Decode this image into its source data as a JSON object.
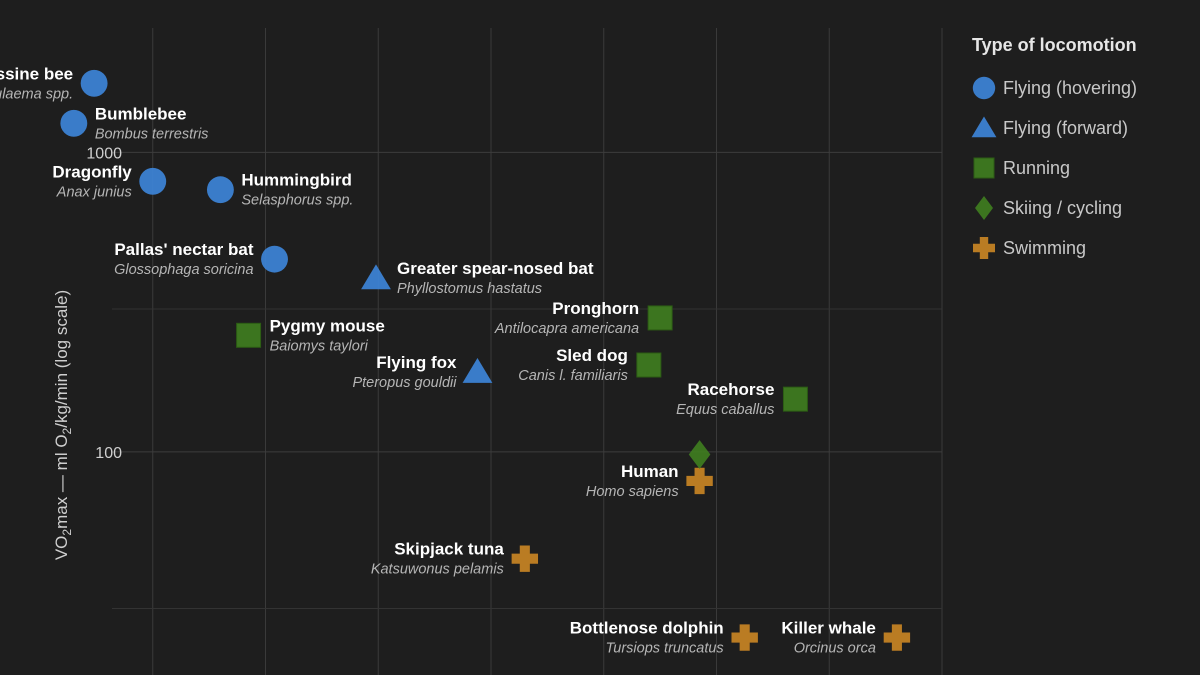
{
  "chart_data": {
    "type": "scatter",
    "ylabel_parts": {
      "pre": "VO",
      "sub": "2",
      "mid": "max — ml O",
      "sub2": "2",
      "post": "/kg/min (log scale)"
    },
    "yscale": "log",
    "ylim": [
      18,
      2600
    ],
    "xlim": [
      0,
      8
    ],
    "y_ticks": [
      {
        "value": 100,
        "label": "100"
      },
      {
        "value": 1000,
        "label": "1000"
      }
    ],
    "grid": true,
    "legend": {
      "title": "Type of locomotion",
      "position": "right",
      "items": [
        {
          "key": "hover",
          "label": "Flying (hovering)",
          "shape": "circle",
          "color": "#3d84d8"
        },
        {
          "key": "forward",
          "label": "Flying (forward)",
          "shape": "triangle",
          "color": "#3d84d8"
        },
        {
          "key": "run",
          "label": "Running",
          "shape": "square",
          "color": "#3f7d1f"
        },
        {
          "key": "ski",
          "label": "Skiing / cycling",
          "shape": "diamond",
          "color": "#3f7d1f"
        },
        {
          "key": "swim",
          "label": "Swimming",
          "shape": "cross",
          "color": "#c88424"
        }
      ]
    },
    "points": [
      {
        "name": "Euglossine bee",
        "sci": "Eulaema spp.",
        "group": "hover",
        "x": 0.48,
        "y": 1700,
        "label_side": "left"
      },
      {
        "name": "Bumblebee",
        "sci": "Bombus terrestris",
        "group": "hover",
        "x": 0.3,
        "y": 1250,
        "label_side": "right"
      },
      {
        "name": "Dragonfly",
        "sci": "Anax junius",
        "group": "hover",
        "x": 1.0,
        "y": 800,
        "label_side": "left"
      },
      {
        "name": "Hummingbird",
        "sci": "Selasphorus spp.",
        "group": "hover",
        "x": 1.6,
        "y": 750,
        "label_side": "right"
      },
      {
        "name": "Pallas' nectar bat",
        "sci": "Glossophaga soricina",
        "group": "hover",
        "x": 2.08,
        "y": 440,
        "label_side": "left"
      },
      {
        "name": "Greater spear-nosed bat",
        "sci": "Phyllostomus hastatus",
        "group": "forward",
        "x": 2.98,
        "y": 380,
        "label_side": "right"
      },
      {
        "name": "Pygmy mouse",
        "sci": "Baiomys taylori",
        "group": "run",
        "x": 1.85,
        "y": 245,
        "label_side": "right"
      },
      {
        "name": "Flying fox",
        "sci": "Pteropus gouldii",
        "group": "forward",
        "x": 3.88,
        "y": 185,
        "label_side": "left"
      },
      {
        "name": "Pronghorn",
        "sci": "Antilocapra americana",
        "group": "run",
        "x": 5.5,
        "y": 280,
        "label_side": "left"
      },
      {
        "name": "Sled dog",
        "sci": "Canis l. familiaris",
        "group": "run",
        "x": 5.4,
        "y": 195,
        "label_side": "left"
      },
      {
        "name": "Racehorse",
        "sci": "Equus caballus",
        "group": "run",
        "x": 6.7,
        "y": 150,
        "label_side": "left"
      },
      {
        "name": "Human",
        "sci": "Homo sapiens",
        "group": "swim",
        "x": 5.85,
        "y": 80,
        "label_side": "left"
      },
      {
        "name": "",
        "sci": "",
        "group": "ski",
        "x": 5.85,
        "y": 98,
        "label_side": "none"
      },
      {
        "name": "Skipjack tuna",
        "sci": "Katsuwonus pelamis",
        "group": "swim",
        "x": 4.3,
        "y": 44,
        "label_side": "left"
      },
      {
        "name": "Bottlenose dolphin",
        "sci": "Tursiops truncatus",
        "group": "swim",
        "x": 6.25,
        "y": 24,
        "label_side": "left"
      },
      {
        "name": "Killer whale",
        "sci": "Orcinus orca",
        "group": "swim",
        "x": 7.6,
        "y": 24,
        "label_side": "left"
      }
    ]
  }
}
